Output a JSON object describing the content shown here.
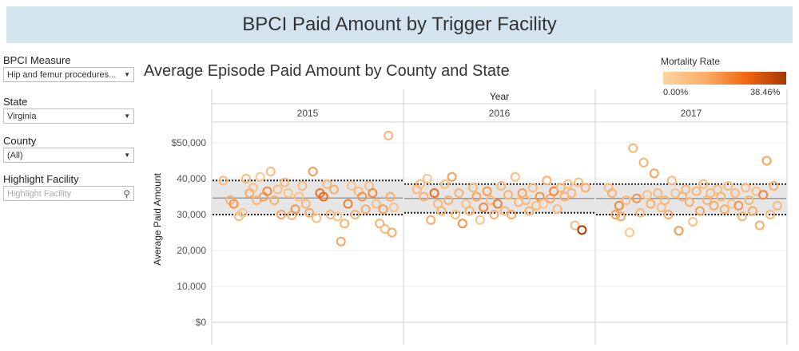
{
  "dashboard": {
    "title": "BPCI Paid Amount by Trigger Facility"
  },
  "filters": {
    "measure": {
      "label": "BPCI Measure",
      "value": "Hip and femur procedures..."
    },
    "state": {
      "label": "State",
      "value": "Virginia"
    },
    "county": {
      "label": "County",
      "value": "(All)"
    },
    "highlight": {
      "label": "Highlight Facility",
      "placeholder": "Highlight Facility"
    }
  },
  "legend": {
    "title": "Mortality Rate",
    "min_label": "0.00%",
    "max_label": "38.46%",
    "colors": [
      "#fdd49e",
      "#fdae6b",
      "#f16913",
      "#a63603"
    ]
  },
  "chart_data": {
    "type": "scatter",
    "title": "Average Episode Paid Amount by County and State",
    "column_header": "Year",
    "ylabel": "Average Paid Amount",
    "ylim": [
      0,
      55000
    ],
    "yticks": [
      0,
      10000,
      20000,
      30000,
      40000,
      50000
    ],
    "ytick_labels": [
      "$0",
      "10,000",
      "20,000",
      "30,000",
      "40,000",
      "$50,000"
    ],
    "mortality_range": [
      0,
      38.46
    ],
    "panels": [
      {
        "label": "2015",
        "band": {
          "low": 30000,
          "high": 39500,
          "mean": 34600
        },
        "points": [
          {
            "x": 0.02,
            "y": 39500,
            "m": 8
          },
          {
            "x": 0.06,
            "y": 34000,
            "m": 12
          },
          {
            "x": 0.08,
            "y": 33000,
            "m": 18
          },
          {
            "x": 0.11,
            "y": 29500,
            "m": 10
          },
          {
            "x": 0.13,
            "y": 30500,
            "m": 6
          },
          {
            "x": 0.15,
            "y": 40000,
            "m": 9
          },
          {
            "x": 0.17,
            "y": 36000,
            "m": 14
          },
          {
            "x": 0.19,
            "y": 37500,
            "m": 7
          },
          {
            "x": 0.21,
            "y": 34000,
            "m": 11
          },
          {
            "x": 0.23,
            "y": 40500,
            "m": 5
          },
          {
            "x": 0.25,
            "y": 35000,
            "m": 16
          },
          {
            "x": 0.27,
            "y": 36500,
            "m": 20
          },
          {
            "x": 0.29,
            "y": 42000,
            "m": 9
          },
          {
            "x": 0.31,
            "y": 34000,
            "m": 13
          },
          {
            "x": 0.33,
            "y": 37000,
            "m": 8
          },
          {
            "x": 0.35,
            "y": 30000,
            "m": 15
          },
          {
            "x": 0.37,
            "y": 39000,
            "m": 10
          },
          {
            "x": 0.39,
            "y": 36000,
            "m": 6
          },
          {
            "x": 0.41,
            "y": 29800,
            "m": 12
          },
          {
            "x": 0.43,
            "y": 31500,
            "m": 18
          },
          {
            "x": 0.45,
            "y": 35000,
            "m": 7
          },
          {
            "x": 0.47,
            "y": 38000,
            "m": 9
          },
          {
            "x": 0.49,
            "y": 33000,
            "m": 11
          },
          {
            "x": 0.51,
            "y": 30500,
            "m": 14
          },
          {
            "x": 0.53,
            "y": 42000,
            "m": 17
          },
          {
            "x": 0.55,
            "y": 29000,
            "m": 8
          },
          {
            "x": 0.57,
            "y": 36000,
            "m": 24
          },
          {
            "x": 0.59,
            "y": 35000,
            "m": 26
          },
          {
            "x": 0.61,
            "y": 38500,
            "m": 9
          },
          {
            "x": 0.63,
            "y": 30000,
            "m": 10
          },
          {
            "x": 0.65,
            "y": 37000,
            "m": 13
          },
          {
            "x": 0.67,
            "y": 29500,
            "m": 6
          },
          {
            "x": 0.69,
            "y": 22500,
            "m": 15
          },
          {
            "x": 0.71,
            "y": 27500,
            "m": 11
          },
          {
            "x": 0.73,
            "y": 33000,
            "m": 22
          },
          {
            "x": 0.75,
            "y": 38000,
            "m": 7
          },
          {
            "x": 0.77,
            "y": 30000,
            "m": 12
          },
          {
            "x": 0.79,
            "y": 36500,
            "m": 9
          },
          {
            "x": 0.81,
            "y": 35000,
            "m": 18
          },
          {
            "x": 0.83,
            "y": 31500,
            "m": 14
          },
          {
            "x": 0.85,
            "y": 38000,
            "m": 8
          },
          {
            "x": 0.87,
            "y": 36000,
            "m": 20
          },
          {
            "x": 0.89,
            "y": 33000,
            "m": 10
          },
          {
            "x": 0.91,
            "y": 27500,
            "m": 12
          },
          {
            "x": 0.93,
            "y": 31500,
            "m": 16
          },
          {
            "x": 0.94,
            "y": 26000,
            "m": 9
          },
          {
            "x": 0.96,
            "y": 52000,
            "m": 11
          },
          {
            "x": 0.97,
            "y": 35000,
            "m": 13
          },
          {
            "x": 0.98,
            "y": 25000,
            "m": 14
          },
          {
            "x": 0.99,
            "y": 32000,
            "m": 6
          }
        ]
      },
      {
        "label": "2016",
        "band": {
          "low": 30500,
          "high": 38500,
          "mean": 34500
        },
        "points": [
          {
            "x": 0.03,
            "y": 37000,
            "m": 9
          },
          {
            "x": 0.05,
            "y": 38500,
            "m": 7
          },
          {
            "x": 0.07,
            "y": 35000,
            "m": 12
          },
          {
            "x": 0.09,
            "y": 40000,
            "m": 6
          },
          {
            "x": 0.11,
            "y": 28500,
            "m": 14
          },
          {
            "x": 0.13,
            "y": 36000,
            "m": 25
          },
          {
            "x": 0.15,
            "y": 33000,
            "m": 10
          },
          {
            "x": 0.17,
            "y": 31000,
            "m": 11
          },
          {
            "x": 0.19,
            "y": 38500,
            "m": 8
          },
          {
            "x": 0.21,
            "y": 34000,
            "m": 13
          },
          {
            "x": 0.23,
            "y": 40500,
            "m": 16
          },
          {
            "x": 0.25,
            "y": 30000,
            "m": 9
          },
          {
            "x": 0.27,
            "y": 36000,
            "m": 12
          },
          {
            "x": 0.29,
            "y": 27500,
            "m": 18
          },
          {
            "x": 0.31,
            "y": 33000,
            "m": 7
          },
          {
            "x": 0.33,
            "y": 31000,
            "m": 11
          },
          {
            "x": 0.35,
            "y": 37500,
            "m": 10
          },
          {
            "x": 0.37,
            "y": 35000,
            "m": 15
          },
          {
            "x": 0.39,
            "y": 28500,
            "m": 6
          },
          {
            "x": 0.41,
            "y": 32000,
            "m": 20
          },
          {
            "x": 0.43,
            "y": 36500,
            "m": 17
          },
          {
            "x": 0.45,
            "y": 34000,
            "m": 8
          },
          {
            "x": 0.47,
            "y": 30000,
            "m": 13
          },
          {
            "x": 0.49,
            "y": 33000,
            "m": 22
          },
          {
            "x": 0.51,
            "y": 38000,
            "m": 9
          },
          {
            "x": 0.53,
            "y": 31000,
            "m": 10
          },
          {
            "x": 0.55,
            "y": 35500,
            "m": 12
          },
          {
            "x": 0.57,
            "y": 30000,
            "m": 14
          },
          {
            "x": 0.59,
            "y": 40500,
            "m": 7
          },
          {
            "x": 0.61,
            "y": 33500,
            "m": 11
          },
          {
            "x": 0.63,
            "y": 36000,
            "m": 16
          },
          {
            "x": 0.65,
            "y": 34000,
            "m": 9
          },
          {
            "x": 0.67,
            "y": 31000,
            "m": 13
          },
          {
            "x": 0.69,
            "y": 37500,
            "m": 8
          },
          {
            "x": 0.71,
            "y": 32500,
            "m": 10
          },
          {
            "x": 0.73,
            "y": 35000,
            "m": 18
          },
          {
            "x": 0.75,
            "y": 33000,
            "m": 6
          },
          {
            "x": 0.77,
            "y": 39500,
            "m": 12
          },
          {
            "x": 0.79,
            "y": 34500,
            "m": 14
          },
          {
            "x": 0.81,
            "y": 36500,
            "m": 21
          },
          {
            "x": 0.83,
            "y": 31500,
            "m": 9
          },
          {
            "x": 0.85,
            "y": 37500,
            "m": 11
          },
          {
            "x": 0.87,
            "y": 35000,
            "m": 13
          },
          {
            "x": 0.89,
            "y": 38500,
            "m": 7
          },
          {
            "x": 0.91,
            "y": 36000,
            "m": 10
          },
          {
            "x": 0.93,
            "y": 27000,
            "m": 9
          },
          {
            "x": 0.95,
            "y": 39000,
            "m": 8
          },
          {
            "x": 0.97,
            "y": 25700,
            "m": 38
          },
          {
            "x": 0.99,
            "y": 37500,
            "m": 12
          }
        ]
      },
      {
        "label": "2017",
        "band": {
          "low": 30000,
          "high": 38500,
          "mean": 34500
        },
        "points": [
          {
            "x": 0.03,
            "y": 37500,
            "m": 8
          },
          {
            "x": 0.05,
            "y": 36000,
            "m": 12
          },
          {
            "x": 0.07,
            "y": 30000,
            "m": 16
          },
          {
            "x": 0.09,
            "y": 32500,
            "m": 20
          },
          {
            "x": 0.1,
            "y": 29500,
            "m": 14
          },
          {
            "x": 0.13,
            "y": 34000,
            "m": 10
          },
          {
            "x": 0.15,
            "y": 25000,
            "m": 5
          },
          {
            "x": 0.17,
            "y": 48500,
            "m": 11
          },
          {
            "x": 0.19,
            "y": 34500,
            "m": 18
          },
          {
            "x": 0.21,
            "y": 30500,
            "m": 9
          },
          {
            "x": 0.23,
            "y": 44500,
            "m": 12
          },
          {
            "x": 0.25,
            "y": 35500,
            "m": 7
          },
          {
            "x": 0.27,
            "y": 33000,
            "m": 13
          },
          {
            "x": 0.29,
            "y": 41500,
            "m": 15
          },
          {
            "x": 0.31,
            "y": 36000,
            "m": 10
          },
          {
            "x": 0.33,
            "y": 32000,
            "m": 8
          },
          {
            "x": 0.35,
            "y": 34000,
            "m": 11
          },
          {
            "x": 0.37,
            "y": 30000,
            "m": 14
          },
          {
            "x": 0.39,
            "y": 39500,
            "m": 9
          },
          {
            "x": 0.41,
            "y": 36000,
            "m": 6
          },
          {
            "x": 0.43,
            "y": 25500,
            "m": 17
          },
          {
            "x": 0.45,
            "y": 35000,
            "m": 12
          },
          {
            "x": 0.47,
            "y": 37000,
            "m": 10
          },
          {
            "x": 0.49,
            "y": 33500,
            "m": 13
          },
          {
            "x": 0.51,
            "y": 28000,
            "m": 7
          },
          {
            "x": 0.53,
            "y": 36500,
            "m": 11
          },
          {
            "x": 0.55,
            "y": 31000,
            "m": 16
          },
          {
            "x": 0.57,
            "y": 38500,
            "m": 9
          },
          {
            "x": 0.59,
            "y": 34000,
            "m": 12
          },
          {
            "x": 0.61,
            "y": 36000,
            "m": 10
          },
          {
            "x": 0.63,
            "y": 32500,
            "m": 14
          },
          {
            "x": 0.65,
            "y": 37000,
            "m": 8
          },
          {
            "x": 0.67,
            "y": 35000,
            "m": 11
          },
          {
            "x": 0.69,
            "y": 31500,
            "m": 13
          },
          {
            "x": 0.71,
            "y": 38000,
            "m": 9
          },
          {
            "x": 0.73,
            "y": 33000,
            "m": 6
          },
          {
            "x": 0.75,
            "y": 36000,
            "m": 10
          },
          {
            "x": 0.77,
            "y": 32500,
            "m": 18
          },
          {
            "x": 0.79,
            "y": 29500,
            "m": 12
          },
          {
            "x": 0.81,
            "y": 37500,
            "m": 9
          },
          {
            "x": 0.83,
            "y": 34000,
            "m": 11
          },
          {
            "x": 0.85,
            "y": 31000,
            "m": 14
          },
          {
            "x": 0.87,
            "y": 36500,
            "m": 8
          },
          {
            "x": 0.89,
            "y": 27000,
            "m": 13
          },
          {
            "x": 0.91,
            "y": 35500,
            "m": 20
          },
          {
            "x": 0.93,
            "y": 45000,
            "m": 15
          },
          {
            "x": 0.95,
            "y": 30000,
            "m": 9
          },
          {
            "x": 0.97,
            "y": 38000,
            "m": 12
          },
          {
            "x": 0.99,
            "y": 32500,
            "m": 10
          }
        ]
      }
    ]
  }
}
